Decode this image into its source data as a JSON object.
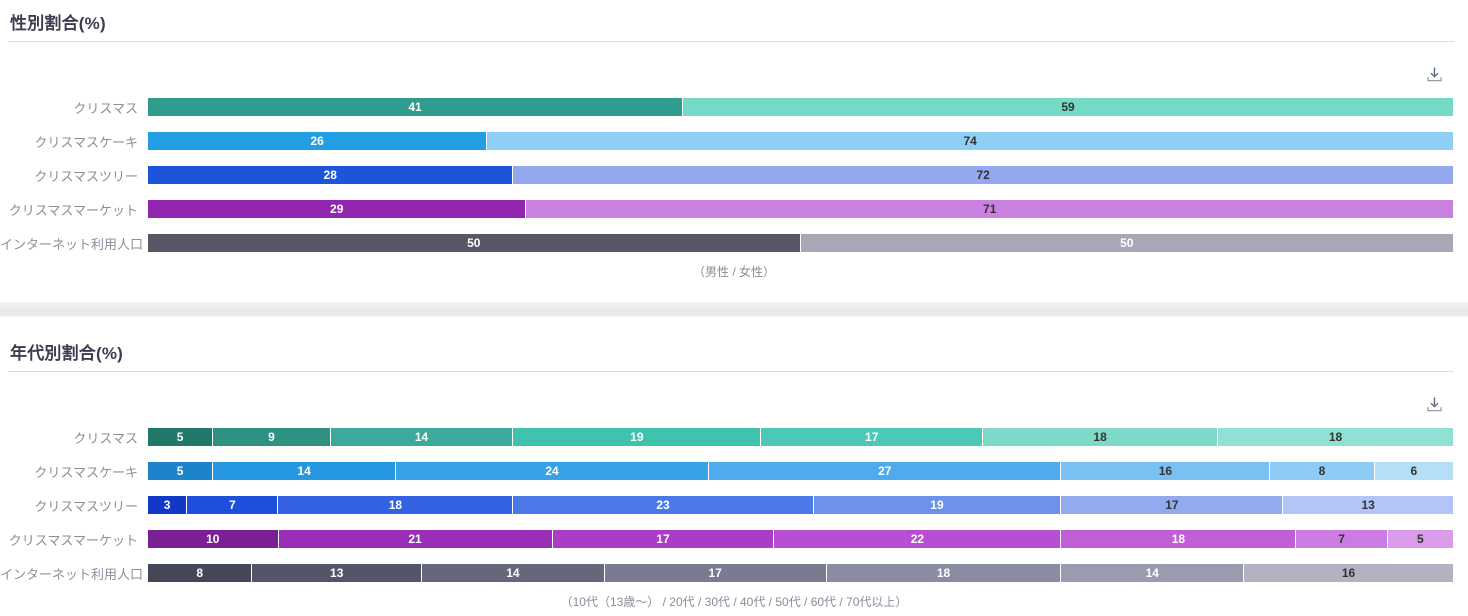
{
  "page": {
    "background": "#ffffff"
  },
  "sections": [
    {
      "title": "性別割合(%)",
      "caption": "（男性 / 女性）",
      "rows": [
        {
          "label": "クリスマス",
          "segments": [
            {
              "value": 41,
              "color": "#2f9c8d",
              "text": "#ffffff"
            },
            {
              "value": 59,
              "color": "#74dac5",
              "text": "#333333"
            }
          ]
        },
        {
          "label": "クリスマスケーキ",
          "segments": [
            {
              "value": 26,
              "color": "#249ee2",
              "text": "#ffffff"
            },
            {
              "value": 74,
              "color": "#90cff5",
              "text": "#333333"
            }
          ]
        },
        {
          "label": "クリスマスツリー",
          "segments": [
            {
              "value": 28,
              "color": "#1c54da",
              "text": "#ffffff"
            },
            {
              "value": 72,
              "color": "#94a8f0",
              "text": "#333333"
            }
          ]
        },
        {
          "label": "クリスマスマーケット",
          "segments": [
            {
              "value": 29,
              "color": "#9226ae",
              "text": "#ffffff"
            },
            {
              "value": 71,
              "color": "#c981e0",
              "text": "#333333"
            }
          ]
        },
        {
          "label": "インターネット利用人口",
          "segments": [
            {
              "value": 50,
              "color": "#575768",
              "text": "#ffffff"
            },
            {
              "value": 50,
              "color": "#a7a7b7",
              "text": "#ffffff"
            }
          ]
        }
      ]
    },
    {
      "title": "年代別割合(%)",
      "caption": "（10代（13歳〜） / 20代 / 30代 / 40代 / 50代 / 60代 / 70代以上）",
      "rows": [
        {
          "label": "クリスマス",
          "segments": [
            {
              "value": 5,
              "color": "#20786a",
              "text": "#ffffff"
            },
            {
              "value": 9,
              "color": "#2e9182",
              "text": "#ffffff"
            },
            {
              "value": 14,
              "color": "#3baa9a",
              "text": "#ffffff"
            },
            {
              "value": 19,
              "color": "#3fc3ad",
              "text": "#ffffff"
            },
            {
              "value": 17,
              "color": "#4dc8b4",
              "text": "#ffffff"
            },
            {
              "value": 18,
              "color": "#7dd9c8",
              "text": "#333333"
            },
            {
              "value": 18,
              "color": "#90e1d3",
              "text": "#333333"
            }
          ]
        },
        {
          "label": "クリスマスケーキ",
          "segments": [
            {
              "value": 5,
              "color": "#1b84cd",
              "text": "#ffffff"
            },
            {
              "value": 14,
              "color": "#2697e2",
              "text": "#ffffff"
            },
            {
              "value": 24,
              "color": "#36a3e9",
              "text": "#ffffff"
            },
            {
              "value": 27,
              "color": "#4faaee",
              "text": "#ffffff"
            },
            {
              "value": 16,
              "color": "#79c1f3",
              "text": "#333333"
            },
            {
              "value": 8,
              "color": "#8fcbf5",
              "text": "#333333"
            },
            {
              "value": 6,
              "color": "#b5def9",
              "text": "#333333"
            }
          ]
        },
        {
          "label": "クリスマスツリー",
          "segments": [
            {
              "value": 3,
              "color": "#1238c8",
              "text": "#ffffff"
            },
            {
              "value": 7,
              "color": "#1e4edc",
              "text": "#ffffff"
            },
            {
              "value": 18,
              "color": "#3562e2",
              "text": "#ffffff"
            },
            {
              "value": 23,
              "color": "#4c79e8",
              "text": "#ffffff"
            },
            {
              "value": 19,
              "color": "#6c92ec",
              "text": "#ffffff"
            },
            {
              "value": 17,
              "color": "#92abf0",
              "text": "#333333"
            },
            {
              "value": 13,
              "color": "#b3c4f6",
              "text": "#333333"
            }
          ]
        },
        {
          "label": "クリスマスマーケット",
          "segments": [
            {
              "value": 10,
              "color": "#7a2094",
              "text": "#ffffff"
            },
            {
              "value": 21,
              "color": "#9a2eb6",
              "text": "#ffffff"
            },
            {
              "value": 17,
              "color": "#ab3cc6",
              "text": "#ffffff"
            },
            {
              "value": 22,
              "color": "#b84ed2",
              "text": "#ffffff"
            },
            {
              "value": 18,
              "color": "#c05ed8",
              "text": "#ffffff"
            },
            {
              "value": 7,
              "color": "#cb7ce2",
              "text": "#333333"
            },
            {
              "value": 5,
              "color": "#da9bea",
              "text": "#333333"
            }
          ]
        },
        {
          "label": "インターネット利用人口",
          "segments": [
            {
              "value": 8,
              "color": "#464659",
              "text": "#ffffff"
            },
            {
              "value": 13,
              "color": "#555569",
              "text": "#ffffff"
            },
            {
              "value": 14,
              "color": "#67677b",
              "text": "#ffffff"
            },
            {
              "value": 17,
              "color": "#7a7a90",
              "text": "#ffffff"
            },
            {
              "value": 18,
              "color": "#8b8ba1",
              "text": "#ffffff"
            },
            {
              "value": 14,
              "color": "#9b9bb0",
              "text": "#ffffff"
            },
            {
              "value": 16,
              "color": "#b2b2c3",
              "text": "#333333"
            }
          ]
        }
      ]
    }
  ],
  "icons": {
    "download": "download-icon"
  },
  "chart_data": [
    {
      "type": "bar",
      "subtype": "stacked-horizontal-100pct",
      "title": "性別割合(%)",
      "categories": [
        "クリスマス",
        "クリスマスケーキ",
        "クリスマスツリー",
        "クリスマスマーケット",
        "インターネット利用人口"
      ],
      "series": [
        {
          "name": "男性",
          "values": [
            41,
            26,
            28,
            29,
            50
          ]
        },
        {
          "name": "女性",
          "values": [
            59,
            74,
            72,
            71,
            50
          ]
        }
      ],
      "xlabel": "",
      "ylabel": "",
      "xlim": [
        0,
        100
      ],
      "grid": false,
      "legend_note": "（男性 / 女性）",
      "legend_position": "bottom-caption",
      "data_labels": true
    },
    {
      "type": "bar",
      "subtype": "stacked-horizontal-100pct",
      "title": "年代別割合(%)",
      "categories": [
        "クリスマス",
        "クリスマスケーキ",
        "クリスマスツリー",
        "クリスマスマーケット",
        "インターネット利用人口"
      ],
      "series": [
        {
          "name": "10代（13歳〜）",
          "values": [
            5,
            5,
            3,
            10,
            8
          ]
        },
        {
          "name": "20代",
          "values": [
            9,
            14,
            7,
            21,
            13
          ]
        },
        {
          "name": "30代",
          "values": [
            14,
            24,
            18,
            17,
            14
          ]
        },
        {
          "name": "40代",
          "values": [
            19,
            27,
            23,
            22,
            17
          ]
        },
        {
          "name": "50代",
          "values": [
            17,
            16,
            19,
            18,
            18
          ]
        },
        {
          "name": "60代",
          "values": [
            18,
            8,
            17,
            7,
            14
          ]
        },
        {
          "name": "70代以上",
          "values": [
            18,
            6,
            13,
            5,
            16
          ]
        }
      ],
      "xlabel": "",
      "ylabel": "",
      "xlim": [
        0,
        100
      ],
      "grid": false,
      "legend_note": "（10代（13歳〜） / 20代 / 30代 / 40代 / 50代 / 60代 / 70代以上）",
      "legend_position": "bottom-caption",
      "data_labels": true
    }
  ]
}
